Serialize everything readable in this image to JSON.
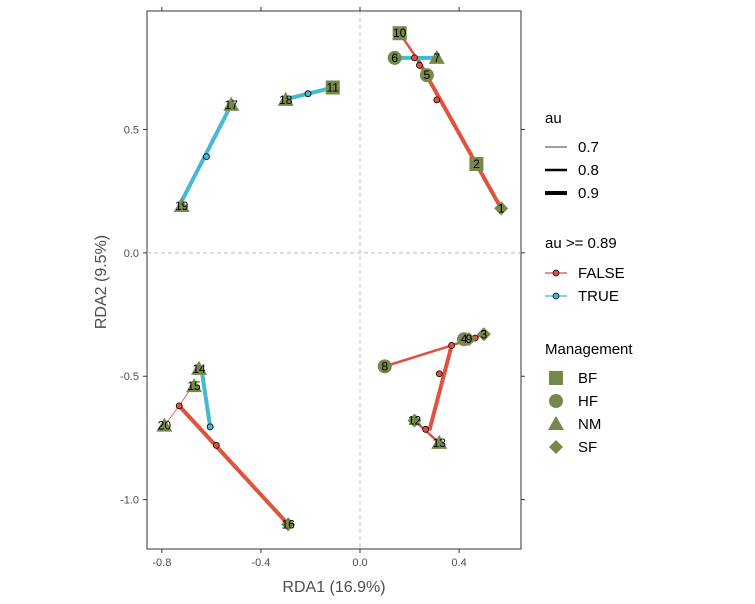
{
  "chart_data": {
    "type": "scatter",
    "xlabel": "RDA1 (16.9%)",
    "ylabel": "RDA2 (9.5%)",
    "xlim": [
      -0.86,
      0.65
    ],
    "ylim": [
      -1.2,
      0.98
    ],
    "xticks": [
      -0.8,
      -0.4,
      0.0,
      0.4
    ],
    "yticks": [
      -1.0,
      -0.5,
      0.0,
      0.5
    ],
    "xtick_labels": [
      "-0.8",
      "-0.4",
      "0.0",
      "0.4"
    ],
    "ytick_labels": [
      "-1.0",
      "-0.5",
      "0.0",
      "0.5"
    ],
    "reference_lines": {
      "x": 0,
      "y": 0,
      "style": "dashed"
    },
    "grid": false,
    "colors": {
      "point": "#76894a",
      "false_line": "#e0523f",
      "true_line": "#45b8d3",
      "ref_line": "#bdbdbd"
    },
    "points": [
      {
        "id": "1",
        "x": 0.57,
        "y": 0.18,
        "management": "SF"
      },
      {
        "id": "2",
        "x": 0.47,
        "y": 0.36,
        "management": "BF"
      },
      {
        "id": "3",
        "x": 0.5,
        "y": -0.33,
        "management": "SF"
      },
      {
        "id": "4",
        "x": 0.42,
        "y": -0.35,
        "management": "HF"
      },
      {
        "id": "5",
        "x": 0.27,
        "y": 0.72,
        "management": "HF"
      },
      {
        "id": "6",
        "x": 0.14,
        "y": 0.79,
        "management": "HF"
      },
      {
        "id": "7",
        "x": 0.31,
        "y": 0.79,
        "management": "NM"
      },
      {
        "id": "8",
        "x": 0.1,
        "y": -0.46,
        "management": "HF"
      },
      {
        "id": "9",
        "x": 0.44,
        "y": -0.35,
        "management": "SF"
      },
      {
        "id": "10",
        "x": 0.16,
        "y": 0.89,
        "management": "BF"
      },
      {
        "id": "11",
        "x": -0.11,
        "y": 0.67,
        "management": "BF"
      },
      {
        "id": "12",
        "x": 0.22,
        "y": -0.68,
        "management": "SF"
      },
      {
        "id": "13",
        "x": 0.32,
        "y": -0.77,
        "management": "NM"
      },
      {
        "id": "14",
        "x": -0.65,
        "y": -0.47,
        "management": "NM"
      },
      {
        "id": "15",
        "x": -0.67,
        "y": -0.54,
        "management": "NM"
      },
      {
        "id": "16",
        "x": -0.29,
        "y": -1.1,
        "management": "SF"
      },
      {
        "id": "17",
        "x": -0.52,
        "y": 0.6,
        "management": "NM"
      },
      {
        "id": "18",
        "x": -0.3,
        "y": 0.62,
        "management": "NM"
      },
      {
        "id": "19",
        "x": -0.72,
        "y": 0.19,
        "management": "NM"
      },
      {
        "id": "20",
        "x": -0.79,
        "y": -0.7,
        "management": "NM"
      }
    ],
    "segments": [
      {
        "x1": 0.57,
        "y1": 0.18,
        "x2": 0.235,
        "y2": 0.78,
        "au_ge_089": false,
        "au": 0.9
      },
      {
        "x1": 0.16,
        "y1": 0.89,
        "x2": 0.235,
        "y2": 0.78,
        "au_ge_089": false,
        "au": 0.8
      },
      {
        "x1": 0.14,
        "y1": 0.79,
        "x2": 0.31,
        "y2": 0.79,
        "au_ge_089": true,
        "au": 0.9
      },
      {
        "x1": 0.27,
        "y1": 0.72,
        "x2": 0.25,
        "y2": 0.76,
        "au_ge_089": false,
        "au": 0.7
      },
      {
        "x1": -0.31,
        "y1": 0.62,
        "x2": -0.11,
        "y2": 0.67,
        "au_ge_089": true,
        "au": 0.9
      },
      {
        "x1": -0.73,
        "y1": 0.19,
        "x2": -0.52,
        "y2": 0.6,
        "au_ge_089": true,
        "au": 0.9
      },
      {
        "x1": 0.1,
        "y1": -0.46,
        "x2": 0.37,
        "y2": -0.375,
        "au_ge_089": false,
        "au": 0.8
      },
      {
        "x1": 0.37,
        "y1": -0.375,
        "x2": 0.5,
        "y2": -0.33,
        "au_ge_089": false,
        "au": 0.8
      },
      {
        "x1": 0.37,
        "y1": -0.375,
        "x2": 0.28,
        "y2": -0.72,
        "au_ge_089": false,
        "au": 0.9
      },
      {
        "x1": 0.22,
        "y1": -0.68,
        "x2": 0.32,
        "y2": -0.77,
        "au_ge_089": false,
        "au": 0.8
      },
      {
        "x1": -0.64,
        "y1": -0.47,
        "x2": -0.605,
        "y2": -0.705,
        "au_ge_089": true,
        "au": 0.9
      },
      {
        "x1": -0.79,
        "y1": -0.7,
        "x2": -0.73,
        "y2": -0.62,
        "au_ge_089": false,
        "au": 0.7
      },
      {
        "x1": -0.73,
        "y1": -0.62,
        "x2": -0.67,
        "y2": -0.53,
        "au_ge_089": false,
        "au": 0.7
      },
      {
        "x1": -0.73,
        "y1": -0.62,
        "x2": -0.29,
        "y2": -1.1,
        "au_ge_089": false,
        "au": 0.9
      }
    ],
    "nodes": [
      {
        "x": 0.22,
        "y": 0.79,
        "au_ge_089": false
      },
      {
        "x": 0.24,
        "y": 0.76,
        "au_ge_089": false
      },
      {
        "x": 0.31,
        "y": 0.62,
        "au_ge_089": false
      },
      {
        "x": -0.21,
        "y": 0.645,
        "au_ge_089": true
      },
      {
        "x": -0.62,
        "y": 0.39,
        "au_ge_089": true
      },
      {
        "x": 0.37,
        "y": -0.375,
        "au_ge_089": false
      },
      {
        "x": 0.465,
        "y": -0.345,
        "au_ge_089": false
      },
      {
        "x": 0.32,
        "y": -0.49,
        "au_ge_089": false
      },
      {
        "x": 0.265,
        "y": -0.715,
        "au_ge_089": false
      },
      {
        "x": -0.605,
        "y": -0.705,
        "au_ge_089": true
      },
      {
        "x": -0.73,
        "y": -0.62,
        "au_ge_089": false
      },
      {
        "x": -0.58,
        "y": -0.78,
        "au_ge_089": false
      }
    ],
    "legend": {
      "placement": "right",
      "au": {
        "title": "au",
        "items": [
          {
            "label": "0.7",
            "value": 0.7
          },
          {
            "label": "0.8",
            "value": 0.8
          },
          {
            "label": "0.9",
            "value": 0.9
          }
        ]
      },
      "au_flag": {
        "title": "au >= 0.89",
        "items": [
          {
            "label": "FALSE",
            "key": "false"
          },
          {
            "label": "TRUE",
            "key": "true"
          }
        ]
      },
      "management": {
        "title": "Management",
        "items": [
          {
            "label": "BF",
            "shape": "square"
          },
          {
            "label": "HF",
            "shape": "circle"
          },
          {
            "label": "NM",
            "shape": "triangle"
          },
          {
            "label": "SF",
            "shape": "diamond"
          }
        ]
      }
    }
  }
}
